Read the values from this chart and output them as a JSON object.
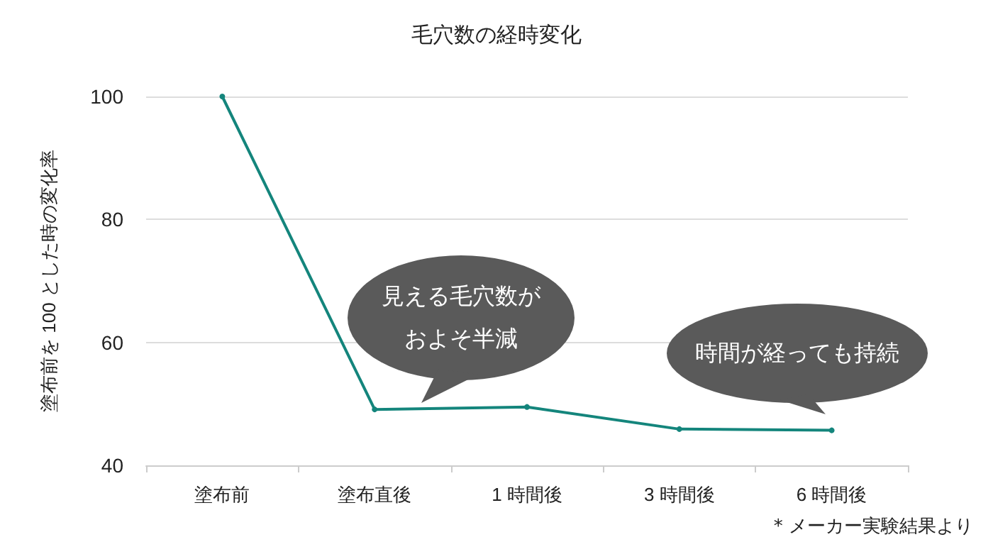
{
  "chart_data": {
    "type": "line",
    "title": "毛穴数の経時変化",
    "ylabel": "塗布前を 100 とした時の変化率",
    "categories": [
      "塗布前",
      "塗布直後",
      "1 時間後",
      "3 時間後",
      "6 時間後"
    ],
    "series": [
      {
        "color": "#14857c",
        "values": [
          100,
          49.1,
          49.5,
          45.9,
          45.7
        ]
      }
    ],
    "ylim": [
      40,
      100
    ],
    "yticks": [
      40,
      60,
      80,
      100
    ],
    "grid": "y",
    "marker": "circle",
    "annotations": [
      "見える毛穴数がおよそ半減",
      "時間が経っても持続",
      "* メーカー実験結果より"
    ]
  }
}
